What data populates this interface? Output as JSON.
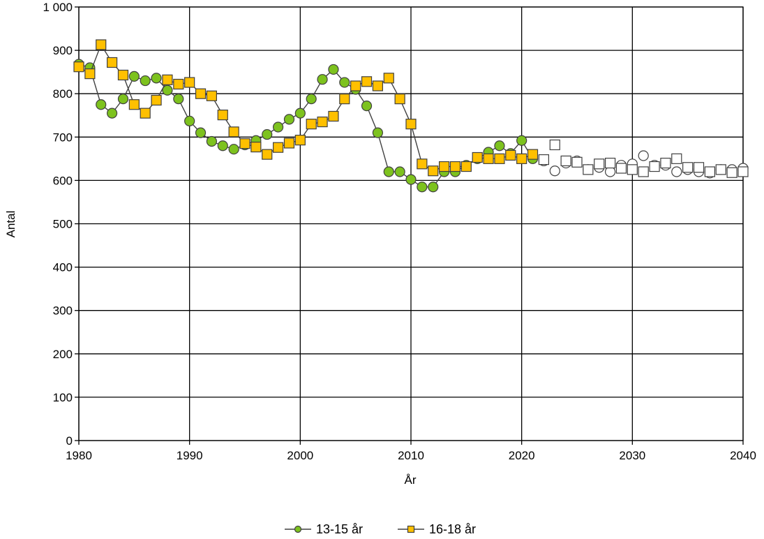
{
  "chart_data": {
    "type": "line",
    "xlabel": "År",
    "ylabel": "Antal",
    "xlim": [
      1980,
      2040
    ],
    "ylim": [
      0,
      1000
    ],
    "x_ticks": [
      1980,
      1990,
      2000,
      2010,
      2020,
      2030,
      2040
    ],
    "y_ticks": [
      0,
      100,
      200,
      300,
      400,
      500,
      600,
      700,
      800,
      900,
      1000
    ],
    "y_tick_labels": [
      "0",
      "100",
      "200",
      "300",
      "400",
      "500",
      "600",
      "700",
      "800",
      "900",
      "1 000"
    ],
    "grid": true,
    "legend_position": "bottom",
    "forecast_from": 2021,
    "series": [
      {
        "name": "13-15 år",
        "marker": "circle",
        "color": "#7dc21e",
        "line_color": "#404040",
        "x": [
          1980,
          1981,
          1982,
          1983,
          1984,
          1985,
          1986,
          1987,
          1988,
          1989,
          1990,
          1991,
          1992,
          1993,
          1994,
          1995,
          1996,
          1997,
          1998,
          1999,
          2000,
          2001,
          2002,
          2003,
          2004,
          2005,
          2006,
          2007,
          2008,
          2009,
          2010,
          2011,
          2012,
          2013,
          2014,
          2015,
          2016,
          2017,
          2018,
          2019,
          2020,
          2021,
          2022,
          2023,
          2024,
          2025,
          2026,
          2027,
          2028,
          2029,
          2030,
          2031,
          2032,
          2033,
          2034,
          2035,
          2036,
          2037,
          2038,
          2039,
          2040
        ],
        "values": [
          868,
          860,
          775,
          755,
          788,
          840,
          830,
          836,
          808,
          788,
          737,
          710,
          690,
          680,
          672,
          682,
          692,
          706,
          723,
          741,
          755,
          788,
          833,
          856,
          826,
          810,
          772,
          710,
          620,
          620,
          602,
          585,
          585,
          620,
          620,
          635,
          650,
          665,
          680,
          662,
          692,
          650,
          645,
          622,
          640,
          645,
          625,
          630,
          620,
          635,
          638,
          657,
          635,
          635,
          620,
          625,
          620,
          617,
          625,
          625,
          628
        ]
      },
      {
        "name": "16-18 år",
        "marker": "square",
        "color": "#ffc000",
        "line_color": "#404040",
        "x": [
          1980,
          1981,
          1982,
          1983,
          1984,
          1985,
          1986,
          1987,
          1988,
          1989,
          1990,
          1991,
          1992,
          1993,
          1994,
          1995,
          1996,
          1997,
          1998,
          1999,
          2000,
          2001,
          2002,
          2003,
          2004,
          2005,
          2006,
          2007,
          2008,
          2009,
          2010,
          2011,
          2012,
          2013,
          2014,
          2015,
          2016,
          2017,
          2018,
          2019,
          2020,
          2021,
          2022,
          2023,
          2024,
          2025,
          2026,
          2027,
          2028,
          2029,
          2030,
          2031,
          2032,
          2033,
          2034,
          2035,
          2036,
          2037,
          2038,
          2039,
          2040
        ],
        "values": [
          862,
          846,
          913,
          872,
          843,
          775,
          755,
          785,
          832,
          822,
          826,
          800,
          795,
          751,
          712,
          685,
          677,
          660,
          676,
          686,
          693,
          730,
          735,
          748,
          788,
          818,
          828,
          818,
          836,
          788,
          730,
          638,
          622,
          632,
          632,
          632,
          653,
          650,
          650,
          658,
          650,
          660,
          648,
          682,
          645,
          642,
          625,
          638,
          640,
          628,
          625,
          620,
          632,
          640,
          650,
          630,
          630,
          620,
          625,
          618,
          620
        ]
      }
    ]
  }
}
